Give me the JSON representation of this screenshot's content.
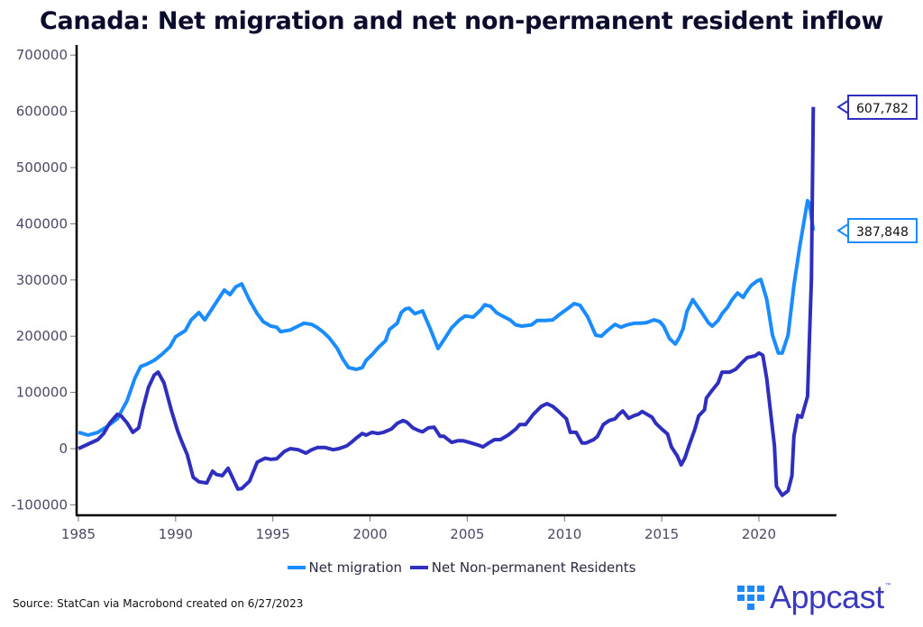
{
  "chart_data": {
    "type": "line",
    "title": "Canada: Net migration and net non-permanent resident inflow",
    "xlabel": "",
    "ylabel": "",
    "xlim": [
      1985,
      2024
    ],
    "ylim": [
      -120000,
      700000
    ],
    "x_ticks": [
      "1985",
      "1990",
      "1995",
      "2000",
      "2005",
      "2010",
      "2015",
      "2020"
    ],
    "y_ticks": [
      "700000",
      "600000",
      "500000",
      "400000",
      "300000",
      "200000",
      "100000",
      "0",
      "-100000"
    ],
    "legend_position": "bottom-center",
    "grid": false,
    "series": [
      {
        "name": "Net migration",
        "color": "#1a8cff",
        "end_label": "387,848",
        "points": [
          [
            1985.0,
            29000
          ],
          [
            1985.5,
            24000
          ],
          [
            1986.0,
            29000
          ],
          [
            1986.5,
            40000
          ],
          [
            1987.0,
            53000
          ],
          [
            1987.5,
            85000
          ],
          [
            1987.9,
            125000
          ],
          [
            1988.2,
            146000
          ],
          [
            1988.5,
            150000
          ],
          [
            1988.9,
            157000
          ],
          [
            1989.3,
            168000
          ],
          [
            1989.7,
            181000
          ],
          [
            1990.0,
            199000
          ],
          [
            1990.5,
            210000
          ],
          [
            1990.8,
            229000
          ],
          [
            1991.2,
            242000
          ],
          [
            1991.5,
            229000
          ],
          [
            1991.8,
            245000
          ],
          [
            1992.2,
            266000
          ],
          [
            1992.5,
            282000
          ],
          [
            1992.8,
            274000
          ],
          [
            1993.1,
            288000
          ],
          [
            1993.4,
            293000
          ],
          [
            1993.8,
            264000
          ],
          [
            1994.2,
            240000
          ],
          [
            1994.5,
            226000
          ],
          [
            1994.9,
            218000
          ],
          [
            1995.2,
            216000
          ],
          [
            1995.4,
            208000
          ],
          [
            1995.9,
            211000
          ],
          [
            1996.3,
            218000
          ],
          [
            1996.6,
            223000
          ],
          [
            1997.0,
            221000
          ],
          [
            1997.3,
            215000
          ],
          [
            1997.6,
            207000
          ],
          [
            1997.9,
            197000
          ],
          [
            1998.3,
            179000
          ],
          [
            1998.6,
            159000
          ],
          [
            1998.9,
            144000
          ],
          [
            1999.3,
            141000
          ],
          [
            1999.6,
            144000
          ],
          [
            1999.8,
            157000
          ],
          [
            2000.1,
            167000
          ],
          [
            2000.4,
            179000
          ],
          [
            2000.8,
            192000
          ],
          [
            2001.0,
            212000
          ],
          [
            2001.4,
            223000
          ],
          [
            2001.6,
            242000
          ],
          [
            2001.8,
            248000
          ],
          [
            2002.0,
            250000
          ],
          [
            2002.3,
            240000
          ],
          [
            2002.7,
            245000
          ],
          [
            2002.9,
            229000
          ],
          [
            2003.1,
            213000
          ],
          [
            2003.5,
            178000
          ],
          [
            2003.9,
            199000
          ],
          [
            2004.2,
            215000
          ],
          [
            2004.6,
            229000
          ],
          [
            2004.9,
            236000
          ],
          [
            2005.3,
            234000
          ],
          [
            2005.7,
            247000
          ],
          [
            2005.9,
            256000
          ],
          [
            2006.2,
            253000
          ],
          [
            2006.5,
            242000
          ],
          [
            2006.8,
            236000
          ],
          [
            2007.2,
            229000
          ],
          [
            2007.5,
            220000
          ],
          [
            2007.8,
            218000
          ],
          [
            2008.3,
            220000
          ],
          [
            2008.6,
            228000
          ],
          [
            2009.0,
            228000
          ],
          [
            2009.4,
            229000
          ],
          [
            2009.8,
            240000
          ],
          [
            2010.2,
            250000
          ],
          [
            2010.5,
            258000
          ],
          [
            2010.8,
            255000
          ],
          [
            2011.2,
            234000
          ],
          [
            2011.6,
            202000
          ],
          [
            2011.9,
            200000
          ],
          [
            2012.2,
            210000
          ],
          [
            2012.6,
            221000
          ],
          [
            2012.9,
            216000
          ],
          [
            2013.2,
            220000
          ],
          [
            2013.6,
            223000
          ],
          [
            2013.9,
            223000
          ],
          [
            2014.2,
            224000
          ],
          [
            2014.6,
            229000
          ],
          [
            2014.9,
            226000
          ],
          [
            2015.1,
            218000
          ],
          [
            2015.4,
            196000
          ],
          [
            2015.7,
            186000
          ],
          [
            2015.9,
            197000
          ],
          [
            2016.1,
            213000
          ],
          [
            2016.3,
            244000
          ],
          [
            2016.6,
            265000
          ],
          [
            2016.8,
            255000
          ],
          [
            2017.1,
            240000
          ],
          [
            2017.4,
            224000
          ],
          [
            2017.6,
            218000
          ],
          [
            2017.9,
            228000
          ],
          [
            2018.1,
            240000
          ],
          [
            2018.4,
            252000
          ],
          [
            2018.6,
            264000
          ],
          [
            2018.9,
            277000
          ],
          [
            2019.2,
            269000
          ],
          [
            2019.3,
            276000
          ],
          [
            2019.6,
            290000
          ],
          [
            2019.9,
            298000
          ],
          [
            2020.1,
            301000
          ],
          [
            2020.4,
            266000
          ],
          [
            2020.7,
            202000
          ],
          [
            2021.0,
            170000
          ],
          [
            2021.2,
            170000
          ],
          [
            2021.5,
            202000
          ],
          [
            2021.8,
            290000
          ],
          [
            2022.1,
            359000
          ],
          [
            2022.5,
            441000
          ],
          [
            2022.6,
            436000
          ],
          [
            2022.8,
            388000
          ]
        ]
      },
      {
        "name": "Net Non-permanent Residents",
        "color": "#2f2fbf",
        "end_label": "607,782",
        "points": [
          [
            1985.0,
            0
          ],
          [
            1985.5,
            8000
          ],
          [
            1986.0,
            16000
          ],
          [
            1986.3,
            27000
          ],
          [
            1986.6,
            45000
          ],
          [
            1987.0,
            61000
          ],
          [
            1987.2,
            58000
          ],
          [
            1987.5,
            46000
          ],
          [
            1987.8,
            29000
          ],
          [
            1988.1,
            37000
          ],
          [
            1988.3,
            69000
          ],
          [
            1988.6,
            109000
          ],
          [
            1988.9,
            131000
          ],
          [
            1989.1,
            136000
          ],
          [
            1989.4,
            117000
          ],
          [
            1989.8,
            66000
          ],
          [
            1990.1,
            32000
          ],
          [
            1990.3,
            14000
          ],
          [
            1990.6,
            -11000
          ],
          [
            1990.9,
            -51000
          ],
          [
            1991.2,
            -59000
          ],
          [
            1991.6,
            -61000
          ],
          [
            1991.9,
            -40000
          ],
          [
            1992.1,
            -46000
          ],
          [
            1992.4,
            -48000
          ],
          [
            1992.7,
            -35000
          ],
          [
            1993.2,
            -72000
          ],
          [
            1993.4,
            -71000
          ],
          [
            1993.8,
            -58000
          ],
          [
            1994.2,
            -24000
          ],
          [
            1994.6,
            -17000
          ],
          [
            1994.9,
            -19000
          ],
          [
            1995.2,
            -18000
          ],
          [
            1995.6,
            -5000
          ],
          [
            1995.9,
            0
          ],
          [
            1996.3,
            -2000
          ],
          [
            1996.7,
            -8000
          ],
          [
            1997.0,
            -2000
          ],
          [
            1997.3,
            2000
          ],
          [
            1997.7,
            2000
          ],
          [
            1998.1,
            -2000
          ],
          [
            1998.4,
            0
          ],
          [
            1998.8,
            5000
          ],
          [
            1999.1,
            13000
          ],
          [
            1999.3,
            19000
          ],
          [
            1999.6,
            27000
          ],
          [
            1999.8,
            24000
          ],
          [
            2000.1,
            29000
          ],
          [
            2000.4,
            27000
          ],
          [
            2000.7,
            29000
          ],
          [
            2001.1,
            35000
          ],
          [
            2001.4,
            45000
          ],
          [
            2001.7,
            50000
          ],
          [
            2001.9,
            47000
          ],
          [
            2002.2,
            37000
          ],
          [
            2002.5,
            32000
          ],
          [
            2002.7,
            30000
          ],
          [
            2003.0,
            37000
          ],
          [
            2003.3,
            38000
          ],
          [
            2003.6,
            22000
          ],
          [
            2003.8,
            22000
          ],
          [
            2004.2,
            11000
          ],
          [
            2004.5,
            14000
          ],
          [
            2004.8,
            14000
          ],
          [
            2005.1,
            11000
          ],
          [
            2005.6,
            6000
          ],
          [
            2005.8,
            3000
          ],
          [
            2006.1,
            10000
          ],
          [
            2006.4,
            16000
          ],
          [
            2006.7,
            16000
          ],
          [
            2007.1,
            24000
          ],
          [
            2007.5,
            35000
          ],
          [
            2007.7,
            43000
          ],
          [
            2008.0,
            43000
          ],
          [
            2008.4,
            61000
          ],
          [
            2008.8,
            75000
          ],
          [
            2009.1,
            80000
          ],
          [
            2009.4,
            75000
          ],
          [
            2009.7,
            66000
          ],
          [
            2010.1,
            53000
          ],
          [
            2010.3,
            29000
          ],
          [
            2010.6,
            29000
          ],
          [
            2010.9,
            10000
          ],
          [
            2011.1,
            10000
          ],
          [
            2011.5,
            16000
          ],
          [
            2011.7,
            22000
          ],
          [
            2012.0,
            43000
          ],
          [
            2012.3,
            50000
          ],
          [
            2012.6,
            53000
          ],
          [
            2012.8,
            61000
          ],
          [
            2013.0,
            67000
          ],
          [
            2013.3,
            54000
          ],
          [
            2013.6,
            59000
          ],
          [
            2013.8,
            61000
          ],
          [
            2014.0,
            66000
          ],
          [
            2014.2,
            62000
          ],
          [
            2014.5,
            56000
          ],
          [
            2014.7,
            45000
          ],
          [
            2015.0,
            35000
          ],
          [
            2015.3,
            26000
          ],
          [
            2015.5,
            3000
          ],
          [
            2015.8,
            -13000
          ],
          [
            2016.0,
            -29000
          ],
          [
            2016.2,
            -16000
          ],
          [
            2016.4,
            5000
          ],
          [
            2016.7,
            34000
          ],
          [
            2016.9,
            58000
          ],
          [
            2017.2,
            69000
          ],
          [
            2017.3,
            90000
          ],
          [
            2017.6,
            104000
          ],
          [
            2017.9,
            117000
          ],
          [
            2018.1,
            136000
          ],
          [
            2018.5,
            136000
          ],
          [
            2018.8,
            141000
          ],
          [
            2019.1,
            152000
          ],
          [
            2019.4,
            162000
          ],
          [
            2019.8,
            165000
          ],
          [
            2020.0,
            170000
          ],
          [
            2020.2,
            166000
          ],
          [
            2020.4,
            125000
          ],
          [
            2020.8,
            5000
          ],
          [
            2020.9,
            -67000
          ],
          [
            2021.2,
            -83000
          ],
          [
            2021.5,
            -75000
          ],
          [
            2021.7,
            -48000
          ],
          [
            2021.8,
            22000
          ],
          [
            2022.0,
            59000
          ],
          [
            2022.2,
            56000
          ],
          [
            2022.5,
            93000
          ],
          [
            2022.7,
            301000
          ],
          [
            2022.8,
            607782
          ]
        ]
      }
    ]
  },
  "source_note": "Source: StatCan via Macrobond created on 6/27/2023",
  "brand": {
    "name": "Appcast",
    "trademark": "™"
  }
}
